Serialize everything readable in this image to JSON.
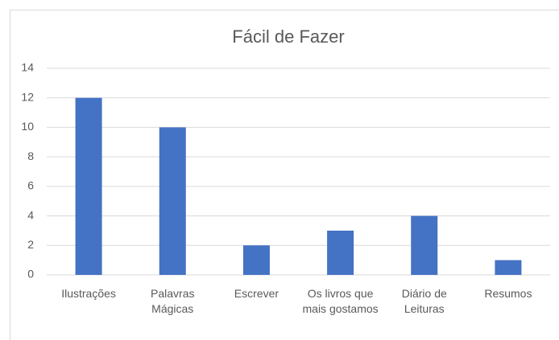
{
  "chart_data": {
    "type": "bar",
    "title": "Fácil de Fazer",
    "categories": [
      "Ilustrações",
      "Palavras Mágicas",
      "Escrever",
      "Os livros que mais gostamos",
      "Diário de Leituras",
      "Resumos"
    ],
    "values": [
      12,
      10,
      2,
      3,
      4,
      1
    ],
    "color": "#4472c4",
    "ylim": [
      0,
      14
    ],
    "yticks": [
      0,
      2,
      4,
      6,
      8,
      10,
      12,
      14
    ],
    "grid": true
  }
}
